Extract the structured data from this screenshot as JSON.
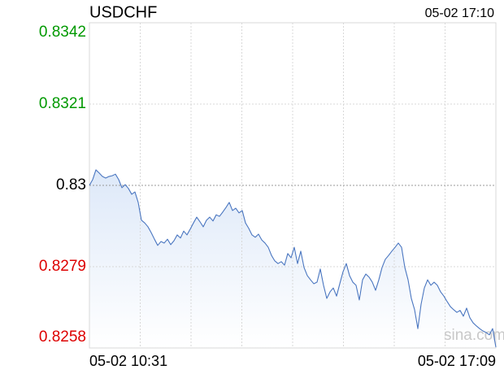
{
  "chart_data": {
    "type": "line",
    "title": "USDCHF",
    "timestamp": "05-02 17:10",
    "watermark": "sina.com",
    "x_labels": [
      "05-02 10:31",
      "05-02 17:09"
    ],
    "color": "#4a76c0",
    "ylim": [
      0.8258,
      0.8342
    ],
    "yticks": [
      0.8342,
      0.8321,
      0.83,
      0.8279,
      0.8258
    ],
    "ytick_colors": [
      "#009900",
      "#009900",
      "#000000",
      "#dd0000",
      "#dd0000"
    ],
    "grid": true,
    "values": [
      0.83,
      0.83015,
      0.8304,
      0.83032,
      0.83023,
      0.83019,
      0.83023,
      0.83025,
      0.83029,
      0.83015,
      0.82994,
      0.83002,
      0.82992,
      0.82977,
      0.82983,
      0.82956,
      0.8291,
      0.82903,
      0.82893,
      0.82878,
      0.82861,
      0.82845,
      0.82855,
      0.82851,
      0.82861,
      0.82847,
      0.82857,
      0.82872,
      0.82864,
      0.82882,
      0.82872,
      0.82887,
      0.82903,
      0.82918,
      0.82906,
      0.82893,
      0.8291,
      0.82918,
      0.82908,
      0.82924,
      0.8292,
      0.82931,
      0.82943,
      0.82956,
      0.82935,
      0.82941,
      0.82929,
      0.82935,
      0.82903,
      0.82889,
      0.82872,
      0.82866,
      0.82874,
      0.82859,
      0.82851,
      0.8284,
      0.82819,
      0.82805,
      0.82798,
      0.82803,
      0.82794,
      0.82824,
      0.82813,
      0.8284,
      0.82798,
      0.8283,
      0.82788,
      0.82767,
      0.82756,
      0.82746,
      0.8275,
      0.82784,
      0.82742,
      0.82708,
      0.82725,
      0.82735,
      0.82714,
      0.82746,
      0.82777,
      0.82798,
      0.82767,
      0.8275,
      0.82742,
      0.82704,
      0.82756,
      0.82771,
      0.82763,
      0.8275,
      0.82729,
      0.82756,
      0.82788,
      0.82809,
      0.82819,
      0.8283,
      0.8284,
      0.82851,
      0.8284,
      0.82788,
      0.82756,
      0.82708,
      0.82679,
      0.8263,
      0.82693,
      0.82735,
      0.82756,
      0.82742,
      0.8275,
      0.82742,
      0.82725,
      0.82714,
      0.827,
      0.82687,
      0.82679,
      0.82672,
      0.82677,
      0.82662,
      0.82683,
      0.82658,
      0.82645,
      0.82637,
      0.8263,
      0.82624,
      0.8262,
      0.82614,
      0.8263,
      0.82582
    ]
  }
}
